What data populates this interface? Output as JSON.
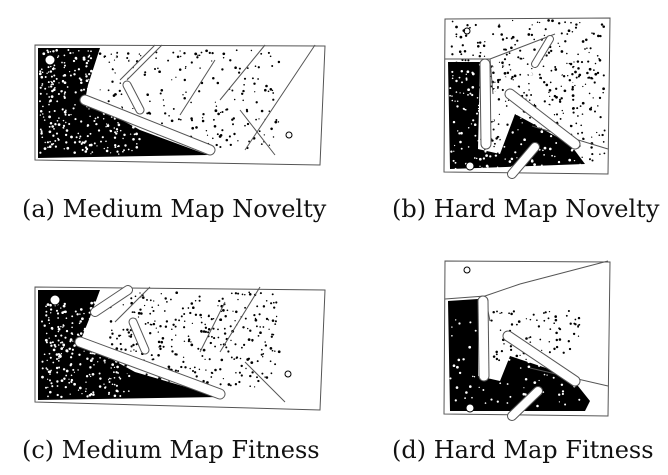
{
  "captions": {
    "a": "(a) Medium Map Novelty",
    "b": "(b) Hard Map Novelty",
    "c": "(c) Medium Map Fitness",
    "d": "(d) Hard Map Fitness"
  },
  "colors": {
    "ink": "#000000",
    "background": "#ffffff",
    "wall": "#555555"
  },
  "icons": [
    "start-circle-icon",
    "goal-marker-icon"
  ]
}
